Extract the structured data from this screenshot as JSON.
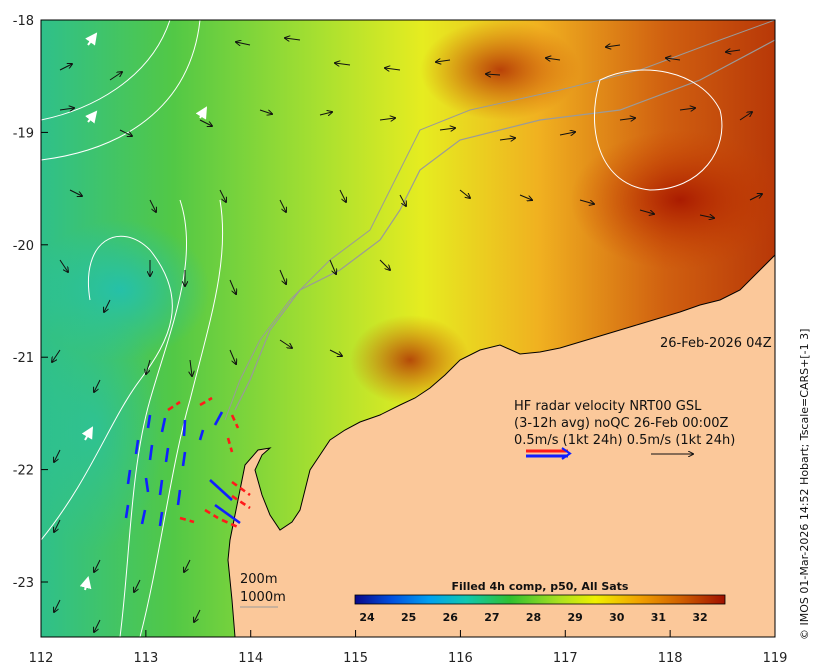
{
  "map": {
    "x_ticks": [
      "112",
      "113",
      "114",
      "115",
      "116",
      "117",
      "118",
      "119"
    ],
    "y_ticks": [
      "-18",
      "-19",
      "-20",
      "-21",
      "-22",
      "-23"
    ],
    "timestamp": "26-Feb-2026 04Z",
    "legend": {
      "line1": "HF radar velocity  NRT00 GSL",
      "line2": "(3-12h avg) noQC  26-Feb 00:00Z",
      "line3": "0.5m/s (1kt 24h)   0.5m/s (1kt 24h)"
    },
    "isobaths": [
      "200m",
      "1000m"
    ],
    "colorbar": {
      "title": "Filled 4h comp, p50, All Sats",
      "ticks": [
        "24",
        "25",
        "26",
        "27",
        "28",
        "29",
        "30",
        "31",
        "32"
      ],
      "colors": [
        "#08088a",
        "#0050e0",
        "#00a0f0",
        "#10c8b0",
        "#30c030",
        "#a8e020",
        "#f0f000",
        "#f0a000",
        "#d06000",
        "#a01000"
      ]
    },
    "credit": "© IMOS 01-Mar-2026 14:52 Hobart; Tscale=CARS+[-1 3]",
    "colors": {
      "land": "#fbc89a",
      "radar_blue": "#1020ff",
      "radar_red": "#ff1a1a",
      "vector": "#111111",
      "contour": "#ffffff"
    }
  }
}
